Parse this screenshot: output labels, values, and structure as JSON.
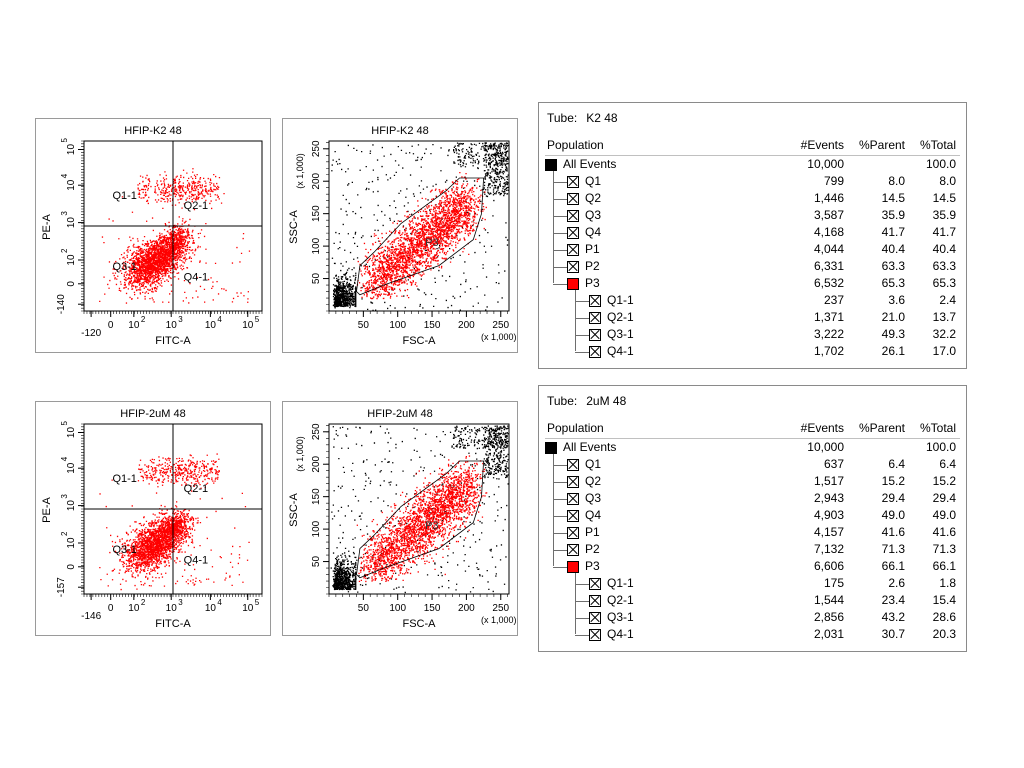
{
  "colors": {
    "red_events": "#ff0000",
    "black_events": "#000000",
    "all_events_swatch": "#000000",
    "p3_swatch": "#ff0000"
  },
  "icons": {
    "gate_checkbox": "x-box-icon",
    "color_swatch": "color-swatch-icon"
  },
  "chart_data": [
    {
      "type": "scatter",
      "title": "HFIP-K2 48",
      "xlabel": "FITC-A",
      "ylabel": "PE-A",
      "x_scale": "biexponential",
      "y_scale": "biexponential",
      "x_ticks": [
        "-120",
        "0",
        "10",
        "10",
        "10",
        "10"
      ],
      "x_tick_exps": [
        "",
        "",
        "2",
        "3",
        "4",
        "5"
      ],
      "y_ticks": [
        "-140",
        "0",
        "10",
        "10",
        "10",
        "10"
      ],
      "y_tick_exps": [
        "",
        "",
        "2",
        "3",
        "4",
        "5"
      ],
      "quadrant_labels": [
        "Q1-1",
        "Q2-1",
        "Q3-1",
        "Q4-1"
      ],
      "quadrant_threshold": {
        "x": 1000,
        "y": 1000
      }
    },
    {
      "type": "scatter",
      "title": "HFIP-K2 48",
      "xlabel": "FSC-A",
      "ylabel": "SSC-A",
      "x_multiplier": "(x 1,000)",
      "y_multiplier": "(x 1,000)",
      "xlim": [
        0,
        262
      ],
      "ylim": [
        0,
        262
      ],
      "x_ticks": [
        "50",
        "100",
        "150",
        "200",
        "250"
      ],
      "y_ticks": [
        "50",
        "100",
        "150",
        "200",
        "250"
      ],
      "gate_label": "P3",
      "gate_polygon": [
        [
          40,
          30
        ],
        [
          45,
          70
        ],
        [
          65,
          90
        ],
        [
          105,
          135
        ],
        [
          170,
          185
        ],
        [
          190,
          205
        ],
        [
          225,
          205
        ],
        [
          222,
          150
        ],
        [
          210,
          110
        ],
        [
          160,
          70
        ],
        [
          80,
          40
        ],
        [
          45,
          25
        ]
      ]
    },
    {
      "type": "table",
      "tube": "K2 48",
      "columns": [
        "Population",
        "#Events",
        "%Parent",
        "%Total"
      ],
      "rows": [
        [
          "All Events",
          "10,000",
          "",
          "100.0"
        ],
        [
          "Q1",
          "799",
          "8.0",
          "8.0"
        ],
        [
          "Q2",
          "1,446",
          "14.5",
          "14.5"
        ],
        [
          "Q3",
          "3,587",
          "35.9",
          "35.9"
        ],
        [
          "Q4",
          "4,168",
          "41.7",
          "41.7"
        ],
        [
          "P1",
          "4,044",
          "40.4",
          "40.4"
        ],
        [
          "P2",
          "6,331",
          "63.3",
          "63.3"
        ],
        [
          "P3",
          "6,532",
          "65.3",
          "65.3"
        ],
        [
          "Q1-1",
          "237",
          "3.6",
          "2.4"
        ],
        [
          "Q2-1",
          "1,371",
          "21.0",
          "13.7"
        ],
        [
          "Q3-1",
          "3,222",
          "49.3",
          "32.2"
        ],
        [
          "Q4-1",
          "1,702",
          "26.1",
          "17.0"
        ]
      ]
    },
    {
      "type": "scatter",
      "title": "HFIP-2uM 48",
      "xlabel": "FITC-A",
      "ylabel": "PE-A",
      "x_scale": "biexponential",
      "y_scale": "biexponential",
      "x_ticks": [
        "-146",
        "0",
        "10",
        "10",
        "10",
        "10"
      ],
      "x_tick_exps": [
        "",
        "",
        "2",
        "3",
        "4",
        "5"
      ],
      "y_ticks": [
        "-157",
        "0",
        "10",
        "10",
        "10",
        "10"
      ],
      "y_tick_exps": [
        "",
        "",
        "2",
        "3",
        "4",
        "5"
      ],
      "quadrant_labels": [
        "Q1-1",
        "Q2-1",
        "Q3-1",
        "Q4-1"
      ],
      "quadrant_threshold": {
        "x": 1000,
        "y": 1000
      }
    },
    {
      "type": "scatter",
      "title": "HFIP-2uM 48",
      "xlabel": "FSC-A",
      "ylabel": "SSC-A",
      "x_multiplier": "(x 1,000)",
      "y_multiplier": "(x 1,000)",
      "xlim": [
        0,
        262
      ],
      "ylim": [
        0,
        262
      ],
      "x_ticks": [
        "50",
        "100",
        "150",
        "200",
        "250"
      ],
      "y_ticks": [
        "50",
        "100",
        "150",
        "200",
        "250"
      ],
      "gate_label": "P3",
      "gate_polygon": [
        [
          40,
          30
        ],
        [
          45,
          70
        ],
        [
          65,
          90
        ],
        [
          105,
          135
        ],
        [
          170,
          185
        ],
        [
          190,
          205
        ],
        [
          225,
          205
        ],
        [
          222,
          150
        ],
        [
          210,
          110
        ],
        [
          160,
          70
        ],
        [
          80,
          40
        ],
        [
          45,
          25
        ]
      ]
    },
    {
      "type": "table",
      "tube": "2uM 48",
      "columns": [
        "Population",
        "#Events",
        "%Parent",
        "%Total"
      ],
      "rows": [
        [
          "All Events",
          "10,000",
          "",
          "100.0"
        ],
        [
          "Q1",
          "637",
          "6.4",
          "6.4"
        ],
        [
          "Q2",
          "1,517",
          "15.2",
          "15.2"
        ],
        [
          "Q3",
          "2,943",
          "29.4",
          "29.4"
        ],
        [
          "Q4",
          "4,903",
          "49.0",
          "49.0"
        ],
        [
          "P1",
          "4,157",
          "41.6",
          "41.6"
        ],
        [
          "P2",
          "7,132",
          "71.3",
          "71.3"
        ],
        [
          "P3",
          "6,606",
          "66.1",
          "66.1"
        ],
        [
          "Q1-1",
          "175",
          "2.6",
          "1.8"
        ],
        [
          "Q2-1",
          "1,544",
          "23.4",
          "15.4"
        ],
        [
          "Q3-1",
          "2,856",
          "43.2",
          "28.6"
        ],
        [
          "Q4-1",
          "2,031",
          "30.7",
          "20.3"
        ]
      ]
    }
  ],
  "tube_label": "Tube:"
}
